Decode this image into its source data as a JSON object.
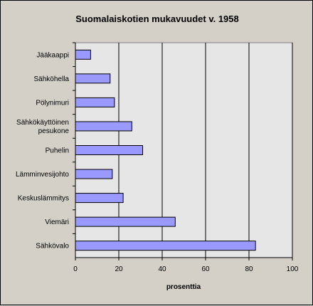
{
  "chart_data": {
    "type": "bar",
    "orientation": "horizontal",
    "title": "Suomalaiskotien mukavuudet v. 1958",
    "xlabel": "prosenttia",
    "ylabel": "",
    "xlim": [
      0,
      100
    ],
    "x_ticks": [
      "0",
      "20",
      "40",
      "60",
      "80",
      "100"
    ],
    "grid": "vertical",
    "legend": "none",
    "categories": [
      [
        "Jääkaappi"
      ],
      [
        "Sähköhella"
      ],
      [
        "Pölynimuri"
      ],
      [
        "Sähkökäyttöinen",
        "pesukone"
      ],
      [
        "Puhelin"
      ],
      [
        "Lämminvesijohto"
      ],
      [
        "Keskuslämmitys"
      ],
      [
        "Viemäri"
      ],
      [
        "Sähkövalo"
      ]
    ],
    "values": [
      7,
      16,
      18,
      26,
      31,
      17,
      22,
      46,
      83
    ],
    "colors": {
      "bar": "#9999ff",
      "plot_area": "#e6e6e6",
      "background": "#d4d0c8"
    }
  }
}
